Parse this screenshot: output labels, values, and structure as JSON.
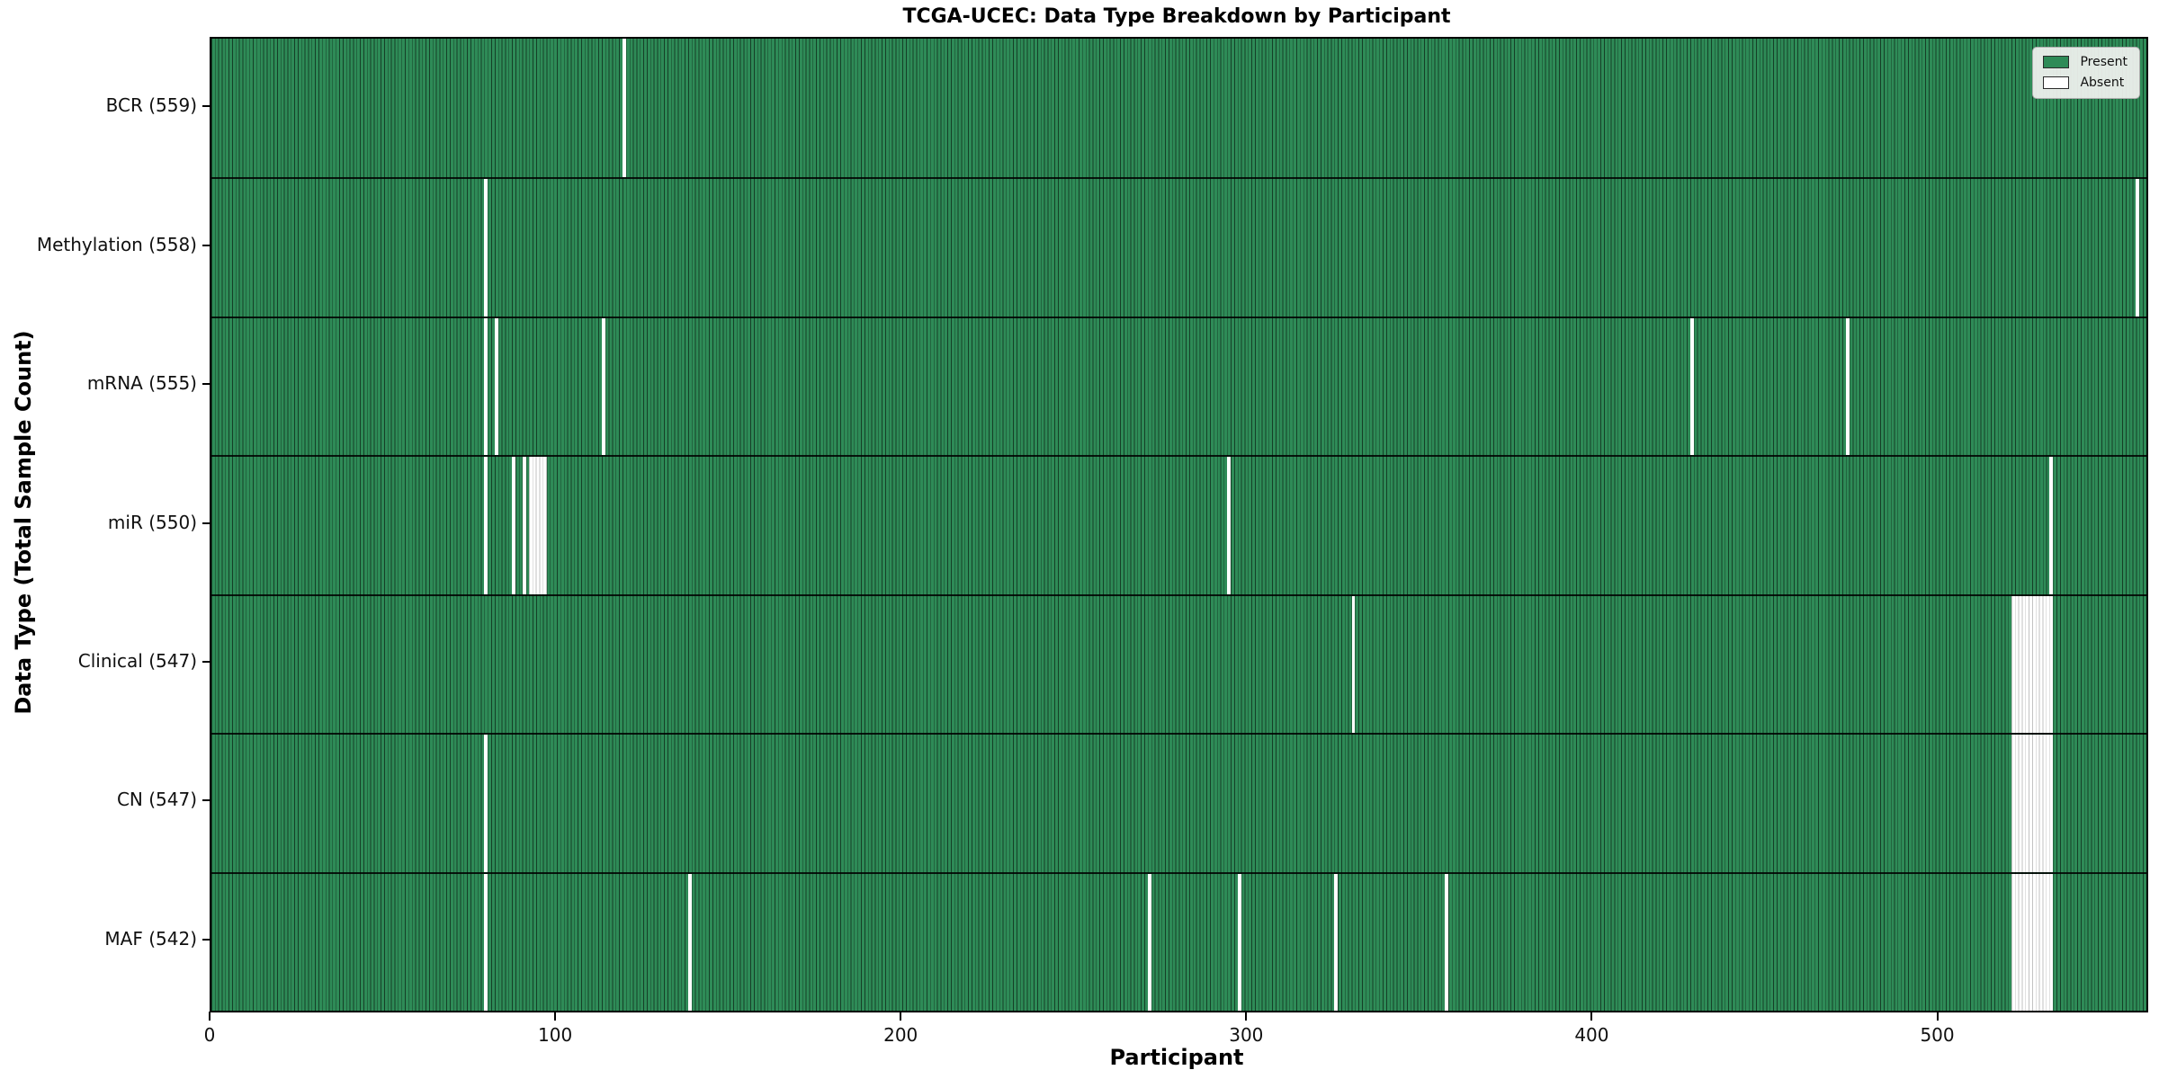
{
  "title": "TCGA-UCEC: Data Type Breakdown by Participant",
  "colors": {
    "present": "#2e8b57",
    "absent": "#ffffff",
    "bar_edge": "rgba(0,0,0,0.55)",
    "row_separator": "rgba(0,0,0,0.85)",
    "plot_border": "#000000"
  },
  "chart_data": {
    "type": "heatmap",
    "title": "TCGA-UCEC: Data Type Breakdown by Participant",
    "xlabel": "Participant",
    "ylabel": "Data Type (Total Sample Count)",
    "legend_labels": [
      "Present",
      "Absent"
    ],
    "legend_position": "upper right",
    "x_ticks": [
      0,
      100,
      200,
      300,
      400,
      500
    ],
    "x_range": [
      0,
      560
    ],
    "total_participants": 560,
    "grid": false,
    "rows": [
      {
        "label": "BCR (559)",
        "data_type": "BCR",
        "present_count": 559,
        "absent_ranges": [
          [
            119,
            119
          ]
        ]
      },
      {
        "label": "Methylation (558)",
        "data_type": "Methylation",
        "present_count": 558,
        "absent_ranges": [
          [
            79,
            79
          ],
          [
            557,
            557
          ]
        ]
      },
      {
        "label": "mRNA (555)",
        "data_type": "mRNA",
        "present_count": 555,
        "absent_ranges": [
          [
            79,
            79
          ],
          [
            82,
            82
          ],
          [
            113,
            113
          ],
          [
            428,
            428
          ],
          [
            473,
            473
          ]
        ]
      },
      {
        "label": "miR (550)",
        "data_type": "miR",
        "present_count": 550,
        "absent_ranges": [
          [
            79,
            79
          ],
          [
            87,
            87
          ],
          [
            90,
            90
          ],
          [
            92,
            96
          ],
          [
            294,
            294
          ],
          [
            532,
            532
          ]
        ]
      },
      {
        "label": "Clinical (547)",
        "data_type": "Clinical",
        "present_count": 547,
        "absent_ranges": [
          [
            330,
            330
          ],
          [
            521,
            532
          ]
        ]
      },
      {
        "label": "CN (547)",
        "data_type": "CN",
        "present_count": 547,
        "absent_ranges": [
          [
            79,
            79
          ],
          [
            521,
            532
          ]
        ]
      },
      {
        "label": "MAF (542)",
        "data_type": "MAF",
        "present_count": 542,
        "absent_ranges": [
          [
            79,
            79
          ],
          [
            138,
            138
          ],
          [
            271,
            271
          ],
          [
            297,
            297
          ],
          [
            325,
            325
          ],
          [
            357,
            357
          ],
          [
            521,
            532
          ]
        ]
      }
    ]
  }
}
